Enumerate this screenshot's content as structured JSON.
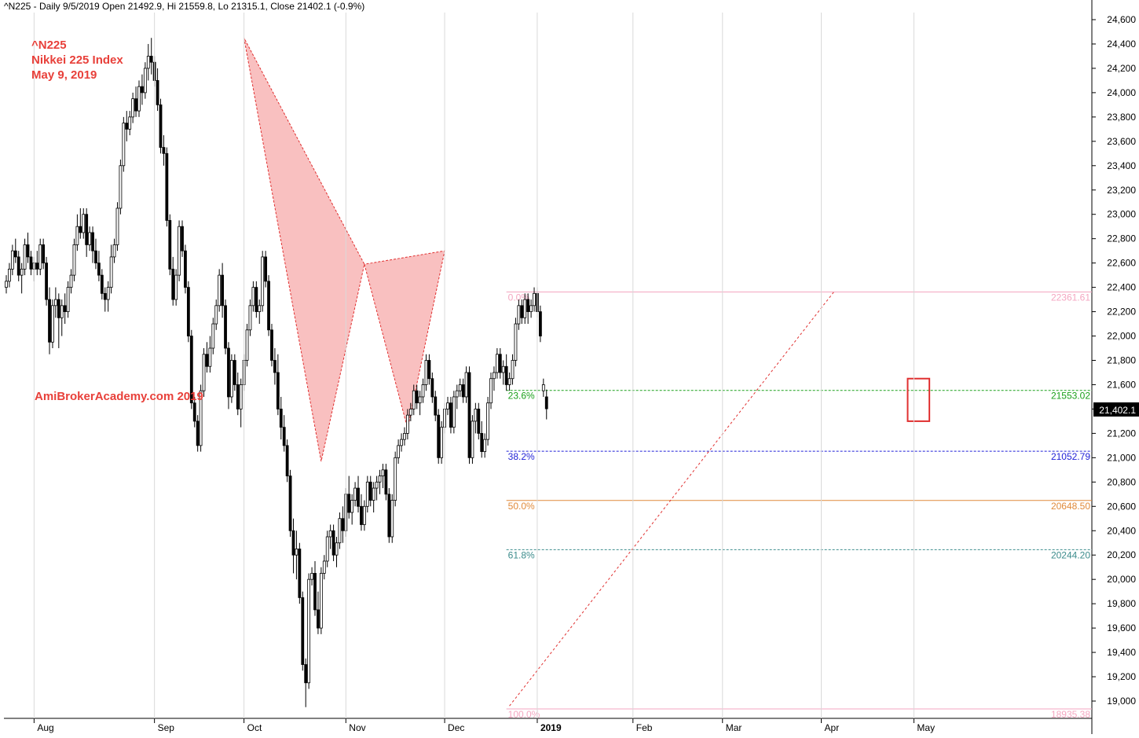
{
  "header": {
    "text": "^N225 - Daily 9/5/2019 Open 21492.9, Hi 21559.8, Lo 21315.1, Close 21402.1 (-0.9%)"
  },
  "annotations": {
    "symbol": "^N225",
    "name": "Nikkei 225 Index",
    "date": "May 9, 2019",
    "watermark": "AmiBrokerAcademy.com  2019"
  },
  "price_label": "21,402.1",
  "colors": {
    "pattern_fill": "#f6a5a5",
    "pattern_stroke": "#e03030",
    "highlight_box": "#e03030",
    "annotation_text": "#e8403a",
    "fib_0": "#f4a6c0",
    "fib_236": "#1aa01a",
    "fib_382": "#1f1fd6",
    "fib_500": "#e08a3a",
    "fib_618": "#3c8c8c",
    "fib_100": "#f4a6c0",
    "up_candle": "#ffffff",
    "down_candle": "#000000"
  },
  "chart_data": {
    "type": "candlestick",
    "title": "^N225 - Daily 9/5/2019 Open 21492.9, Hi 21559.8, Lo 21315.1, Close 21402.1 (-0.9%)",
    "ylim": [
      18900,
      24750
    ],
    "y_ticks": [
      "24,600",
      "24,400",
      "24,200",
      "24,000",
      "23,800",
      "23,600",
      "23,400",
      "23,200",
      "23,000",
      "22,800",
      "22,600",
      "22,400",
      "22,200",
      "22,000",
      "21,800",
      "21,600",
      "21,400",
      "21,200",
      "21,000",
      "20,800",
      "20,600",
      "20,400",
      "20,200",
      "20,000",
      "19,800",
      "19,600",
      "19,400",
      "19,200",
      "19,000"
    ],
    "x_ticks": [
      {
        "label": "Aug",
        "bar": 9
      },
      {
        "label": "Sep",
        "bar": 48
      },
      {
        "label": "Oct",
        "bar": 77
      },
      {
        "label": "Nov",
        "bar": 110
      },
      {
        "label": "Dec",
        "bar": 142
      },
      {
        "label": "2019",
        "bar": 172,
        "bold": true
      },
      {
        "label": "Feb",
        "bar": 203
      },
      {
        "label": "Mar",
        "bar": 232
      },
      {
        "label": "Apr",
        "bar": 264
      },
      {
        "label": "May",
        "bar": 294
      }
    ],
    "fibonacci": [
      {
        "label": "0.0%",
        "value": 22361.61,
        "value_label": "22361.61",
        "color_key": "fib_0",
        "style": "solid"
      },
      {
        "label": "23.6%",
        "value": 21553.02,
        "value_label": "21553.02",
        "color_key": "fib_236",
        "style": "dashed"
      },
      {
        "label": "38.2%",
        "value": 21052.79,
        "value_label": "21052.79",
        "color_key": "fib_382",
        "style": "dashed"
      },
      {
        "label": "50.0%",
        "value": 20648.5,
        "value_label": "20648.50",
        "color_key": "fib_500",
        "style": "solid"
      },
      {
        "label": "61.8%",
        "value": 20244.2,
        "value_label": "20244.20",
        "color_key": "fib_618",
        "style": "dashed"
      },
      {
        "label": "100.0%",
        "value": 18935.38,
        "value_label": "18935.38",
        "color_key": "fib_100",
        "style": "solid"
      }
    ],
    "fib_start_bar": 162,
    "trendline": {
      "from": {
        "bar": 163,
        "value": 18960
      },
      "to": {
        "bar": 268,
        "value": 22360
      }
    },
    "harmonic_pattern": {
      "points": [
        {
          "bar": 77,
          "value": 24450
        },
        {
          "bar": 102,
          "value": 20970
        },
        {
          "bar": 116,
          "value": 22590
        },
        {
          "bar": 130,
          "value": 21240
        },
        {
          "bar": 142,
          "value": 22700
        }
      ]
    },
    "highlight": {
      "bars": [
        293,
        298
      ],
      "range": [
        21300,
        21650
      ]
    },
    "candles": [
      [
        22400,
        22500,
        22350,
        22450
      ],
      [
        22450,
        22600,
        22400,
        22550
      ],
      [
        22550,
        22750,
        22500,
        22700
      ],
      [
        22700,
        22800,
        22600,
        22650
      ],
      [
        22650,
        22700,
        22450,
        22500
      ],
      [
        22500,
        22600,
        22350,
        22550
      ],
      [
        22550,
        22800,
        22500,
        22750
      ],
      [
        22750,
        22850,
        22600,
        22650
      ],
      [
        22650,
        22700,
        22500,
        22550
      ],
      [
        22550,
        22650,
        22450,
        22600
      ],
      [
        22600,
        22700,
        22500,
        22550
      ],
      [
        22550,
        22800,
        22500,
        22750
      ],
      [
        22750,
        22800,
        22550,
        22600
      ],
      [
        22600,
        22650,
        22250,
        22300
      ],
      [
        22300,
        22400,
        21850,
        21950
      ],
      [
        21950,
        22300,
        21900,
        22250
      ],
      [
        22250,
        22400,
        22150,
        22300
      ],
      [
        22300,
        22350,
        21900,
        22150
      ],
      [
        22150,
        22300,
        22000,
        22250
      ],
      [
        22250,
        22350,
        22100,
        22200
      ],
      [
        22200,
        22450,
        22150,
        22400
      ],
      [
        22400,
        22550,
        22350,
        22500
      ],
      [
        22500,
        22800,
        22450,
        22750
      ],
      [
        22750,
        23000,
        22700,
        22900
      ],
      [
        22900,
        23050,
        22800,
        22850
      ],
      [
        22850,
        23050,
        22800,
        23000
      ],
      [
        23000,
        23050,
        22650,
        22750
      ],
      [
        22750,
        22900,
        22700,
        22850
      ],
      [
        22850,
        22900,
        22600,
        22700
      ],
      [
        22700,
        22800,
        22550,
        22600
      ],
      [
        22600,
        22700,
        22450,
        22500
      ],
      [
        22500,
        22550,
        22300,
        22350
      ],
      [
        22350,
        22400,
        22200,
        22300
      ],
      [
        22300,
        22450,
        22200,
        22400
      ],
      [
        22400,
        22750,
        22350,
        22650
      ],
      [
        22650,
        22800,
        22600,
        22750
      ],
      [
        22750,
        23100,
        22700,
        23050
      ],
      [
        23050,
        23450,
        23000,
        23400
      ],
      [
        23400,
        23800,
        23350,
        23750
      ],
      [
        23750,
        23850,
        23600,
        23700
      ],
      [
        23700,
        23850,
        23650,
        23800
      ],
      [
        23800,
        24000,
        23750,
        23950
      ],
      [
        23950,
        24050,
        23800,
        23850
      ],
      [
        23850,
        24100,
        23800,
        24050
      ],
      [
        24050,
        24150,
        23900,
        24000
      ],
      [
        24000,
        24250,
        23950,
        24200
      ],
      [
        24200,
        24400,
        24100,
        24300
      ],
      [
        24300,
        24450,
        24150,
        24250
      ],
      [
        24250,
        24300,
        24050,
        24100
      ],
      [
        24100,
        24200,
        23850,
        23900
      ],
      [
        23900,
        23950,
        23500,
        23550
      ],
      [
        23550,
        23650,
        23400,
        23500
      ],
      [
        23500,
        23550,
        22900,
        22950
      ],
      [
        22950,
        23000,
        22500,
        22550
      ],
      [
        22550,
        22650,
        22250,
        22300
      ],
      [
        22300,
        22550,
        22250,
        22500
      ],
      [
        22500,
        22950,
        22450,
        22900
      ],
      [
        22900,
        22950,
        22650,
        22700
      ],
      [
        22700,
        22750,
        22350,
        22400
      ],
      [
        22400,
        22450,
        21950,
        22000
      ],
      [
        22000,
        22050,
        21400,
        21450
      ],
      [
        21450,
        21500,
        21250,
        21300
      ],
      [
        21300,
        21350,
        21050,
        21100
      ],
      [
        21100,
        21600,
        21050,
        21550
      ],
      [
        21550,
        21900,
        21500,
        21850
      ],
      [
        21850,
        21950,
        21700,
        21750
      ],
      [
        21750,
        22000,
        21700,
        21900
      ],
      [
        21900,
        22150,
        21850,
        22100
      ],
      [
        22100,
        22300,
        22050,
        22250
      ],
      [
        22250,
        22550,
        22200,
        22500
      ],
      [
        22500,
        22600,
        22150,
        22250
      ],
      [
        22250,
        22300,
        21850,
        21900
      ],
      [
        21900,
        21950,
        21400,
        21500
      ],
      [
        21500,
        21850,
        21450,
        21800
      ],
      [
        21800,
        21850,
        21550,
        21600
      ],
      [
        21600,
        21700,
        21350,
        21400
      ],
      [
        21400,
        21650,
        21250,
        21600
      ],
      [
        21600,
        21850,
        21550,
        21800
      ],
      [
        21800,
        22100,
        21750,
        22050
      ],
      [
        22050,
        22300,
        22000,
        22250
      ],
      [
        22250,
        22450,
        22200,
        22400
      ],
      [
        22400,
        22450,
        22150,
        22200
      ],
      [
        22200,
        22300,
        22100,
        22250
      ],
      [
        22250,
        22700,
        22200,
        22650
      ],
      [
        22650,
        22700,
        22400,
        22450
      ],
      [
        22450,
        22500,
        22000,
        22050
      ],
      [
        22050,
        22100,
        21750,
        21800
      ],
      [
        21800,
        21900,
        21600,
        21700
      ],
      [
        21700,
        21850,
        21350,
        21400
      ],
      [
        21400,
        21500,
        21150,
        21250
      ],
      [
        21250,
        21350,
        21050,
        21100
      ],
      [
        21100,
        21150,
        20800,
        20850
      ],
      [
        20850,
        20900,
        20350,
        20400
      ],
      [
        20400,
        20500,
        20050,
        20200
      ],
      [
        20200,
        20400,
        20000,
        20250
      ],
      [
        20250,
        20300,
        19800,
        19850
      ],
      [
        19850,
        19900,
        19250,
        19300
      ],
      [
        19300,
        19350,
        18950,
        19150
      ],
      [
        19150,
        20050,
        19100,
        20000
      ],
      [
        20000,
        20100,
        19950,
        20050
      ],
      [
        20050,
        20150,
        19700,
        19750
      ],
      [
        19750,
        19900,
        19550,
        19600
      ],
      [
        19600,
        20100,
        19550,
        20050
      ],
      [
        20050,
        20200,
        20000,
        20150
      ],
      [
        20150,
        20400,
        20100,
        20350
      ],
      [
        20350,
        20450,
        20250,
        20400
      ],
      [
        20400,
        20450,
        20150,
        20200
      ],
      [
        20200,
        20350,
        20100,
        20300
      ],
      [
        20300,
        20550,
        20250,
        20500
      ],
      [
        20500,
        20600,
        20300,
        20400
      ],
      [
        20400,
        20750,
        20350,
        20700
      ],
      [
        20700,
        20850,
        20500,
        20550
      ],
      [
        20550,
        20700,
        20450,
        20650
      ],
      [
        20650,
        20800,
        20600,
        20750
      ],
      [
        20750,
        20850,
        20550,
        20600
      ],
      [
        20600,
        20700,
        20400,
        20450
      ],
      [
        20450,
        20650,
        20400,
        20600
      ],
      [
        20600,
        20850,
        20550,
        20800
      ],
      [
        20800,
        20850,
        20600,
        20650
      ],
      [
        20650,
        20800,
        20550,
        20750
      ],
      [
        20750,
        20850,
        20650,
        20800
      ],
      [
        20800,
        20900,
        20700,
        20850
      ],
      [
        20850,
        20950,
        20750,
        20900
      ],
      [
        20900,
        20950,
        20650,
        20700
      ],
      [
        20700,
        20750,
        20300,
        20350
      ],
      [
        20350,
        20700,
        20300,
        20650
      ],
      [
        20650,
        21050,
        20600,
        21000
      ],
      [
        21000,
        21150,
        20950,
        21100
      ],
      [
        21100,
        21200,
        21050,
        21150
      ],
      [
        21150,
        21250,
        21100,
        21200
      ],
      [
        21200,
        21400,
        21150,
        21350
      ],
      [
        21350,
        21450,
        21300,
        21400
      ],
      [
        21400,
        21600,
        21350,
        21550
      ],
      [
        21550,
        21600,
        21400,
        21450
      ],
      [
        21450,
        21550,
        21350,
        21500
      ],
      [
        21500,
        21650,
        21450,
        21600
      ],
      [
        21600,
        21850,
        21550,
        21800
      ],
      [
        21800,
        21850,
        21600,
        21650
      ],
      [
        21650,
        21700,
        21450,
        21500
      ],
      [
        21500,
        21550,
        21300,
        21350
      ],
      [
        21350,
        21400,
        20950,
        21000
      ],
      [
        21000,
        21300,
        20950,
        21250
      ],
      [
        21250,
        21450,
        21200,
        21400
      ],
      [
        21400,
        21500,
        21350,
        21450
      ],
      [
        21450,
        21500,
        21200,
        21250
      ],
      [
        21250,
        21550,
        21200,
        21500
      ],
      [
        21500,
        21600,
        21400,
        21550
      ],
      [
        21550,
        21650,
        21500,
        21600
      ],
      [
        21600,
        21650,
        21450,
        21500
      ],
      [
        21500,
        21750,
        21450,
        21700
      ],
      [
        21700,
        21750,
        20950,
        21000
      ],
      [
        21000,
        21350,
        20950,
        21300
      ],
      [
        21300,
        21450,
        21200,
        21400
      ],
      [
        21400,
        21450,
        21150,
        21200
      ],
      [
        21200,
        21300,
        21000,
        21050
      ],
      [
        21050,
        21200,
        21000,
        21150
      ],
      [
        21150,
        21500,
        21100,
        21450
      ],
      [
        21450,
        21700,
        21400,
        21650
      ],
      [
        21650,
        21750,
        21550,
        21700
      ],
      [
        21700,
        21900,
        21650,
        21850
      ],
      [
        21850,
        21900,
        21650,
        21700
      ],
      [
        21700,
        21800,
        21600,
        21750
      ],
      [
        21750,
        21850,
        21550,
        21600
      ],
      [
        21600,
        21700,
        21550,
        21650
      ],
      [
        21650,
        21850,
        21600,
        21800
      ],
      [
        21800,
        22150,
        21750,
        22100
      ],
      [
        22100,
        22300,
        22050,
        22250
      ],
      [
        22250,
        22300,
        22100,
        22150
      ],
      [
        22150,
        22350,
        22100,
        22300
      ],
      [
        22300,
        22350,
        22100,
        22200
      ],
      [
        22200,
        22300,
        22150,
        22250
      ],
      [
        22250,
        22400,
        22200,
        22350
      ],
      [
        22350,
        22400,
        22150,
        22200
      ],
      [
        22200,
        22250,
        21950,
        22000
      ],
      [
        21550,
        21650,
        21500,
        21600
      ],
      [
        21500,
        21560,
        21315,
        21402
      ]
    ]
  }
}
